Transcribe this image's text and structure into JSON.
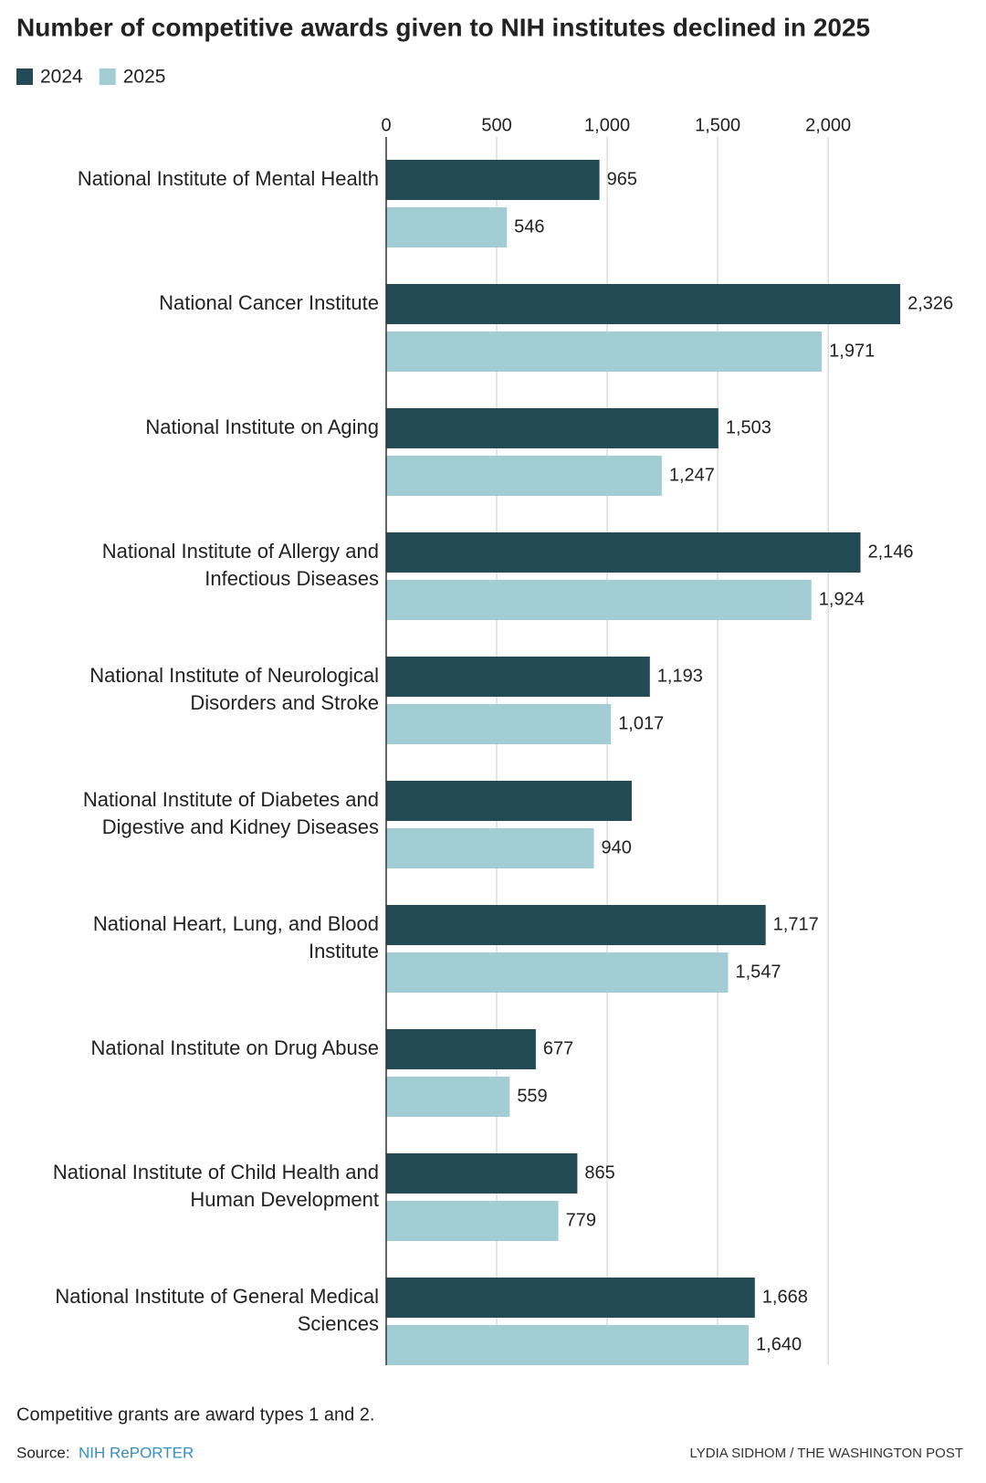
{
  "chart_data": {
    "type": "barh",
    "title": "Number of competitive awards given to NIH institutes declined in 2025",
    "categories": [
      "National Institute of Mental Health",
      "National Cancer Institute",
      "National Institute on Aging",
      "National Institute of Allergy and\nInfectious Diseases",
      "National Institute of Neurological\nDisorders and Stroke",
      "National Institute of Diabetes and\nDigestive and Kidney Diseases",
      "National Heart, Lung, and Blood\nInstitute",
      "National Institute on Drug Abuse",
      "National Institute of Child Health and\nHuman Development",
      "National Institute of General Medical\nSciences"
    ],
    "series": [
      {
        "name": "2024",
        "color": "#234b55",
        "values": [
          965,
          2326,
          1503,
          2146,
          1193,
          1111,
          1717,
          677,
          865,
          1668
        ],
        "value_labels": [
          "965",
          "2,326",
          "1,503",
          "2,146",
          "1,193",
          null,
          "1,717",
          "677",
          "865",
          "1,668"
        ]
      },
      {
        "name": "2025",
        "color": "#a3cdd4",
        "values": [
          546,
          1971,
          1247,
          1924,
          1017,
          940,
          1547,
          559,
          779,
          1640
        ],
        "value_labels": [
          "546",
          "1,971",
          "1,247",
          "1,924",
          "1,017",
          "940",
          "1,547",
          "559",
          "779",
          "1,640"
        ]
      }
    ],
    "xlim": [
      0,
      2400
    ],
    "xticks": [
      0,
      500,
      {
        "value": 1000,
        "label": "1,000"
      },
      {
        "value": 1500,
        "label": "1,500"
      },
      {
        "value": 2000,
        "label": "2,000"
      }
    ],
    "grid": true,
    "note": "Competitive grants are award types 1 and 2.",
    "source_label": "Source:",
    "source": "NIH RePORTER",
    "credit": "LYDIA SIDHOM / THE WASHINGTON POST"
  }
}
